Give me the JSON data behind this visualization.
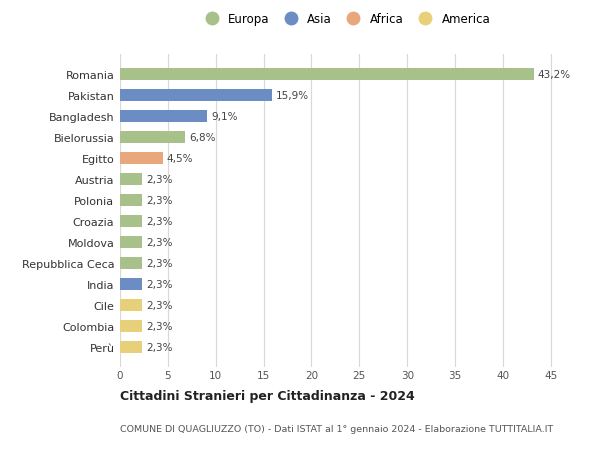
{
  "categories": [
    "Romania",
    "Pakistan",
    "Bangladesh",
    "Bielorussia",
    "Egitto",
    "Austria",
    "Polonia",
    "Croazia",
    "Moldova",
    "Repubblica Ceca",
    "India",
    "Cile",
    "Colombia",
    "Perù"
  ],
  "values": [
    43.2,
    15.9,
    9.1,
    6.8,
    4.5,
    2.3,
    2.3,
    2.3,
    2.3,
    2.3,
    2.3,
    2.3,
    2.3,
    2.3
  ],
  "labels": [
    "43,2%",
    "15,9%",
    "9,1%",
    "6,8%",
    "4,5%",
    "2,3%",
    "2,3%",
    "2,3%",
    "2,3%",
    "2,3%",
    "2,3%",
    "2,3%",
    "2,3%",
    "2,3%"
  ],
  "colors": [
    "#a8c08a",
    "#6b8dc4",
    "#6b8dc4",
    "#a8c08a",
    "#e8a87c",
    "#a8c08a",
    "#a8c08a",
    "#a8c08a",
    "#a8c08a",
    "#a8c08a",
    "#6b8dc4",
    "#e8d07a",
    "#e8d07a",
    "#e8d07a"
  ],
  "legend_labels": [
    "Europa",
    "Asia",
    "Africa",
    "America"
  ],
  "legend_colors": [
    "#a8c08a",
    "#6b8dc4",
    "#e8a87c",
    "#e8d07a"
  ],
  "xlim": [
    0,
    47
  ],
  "xticks": [
    0,
    5,
    10,
    15,
    20,
    25,
    30,
    35,
    40,
    45
  ],
  "title_line1": "Cittadini Stranieri per Cittadinanza - 2024",
  "title_line2": "COMUNE DI QUAGLIUZZO (TO) - Dati ISTAT al 1° gennaio 2024 - Elaborazione TUTTITALIA.IT",
  "background_color": "#ffffff",
  "grid_color": "#d8d8d8",
  "bar_height": 0.55
}
